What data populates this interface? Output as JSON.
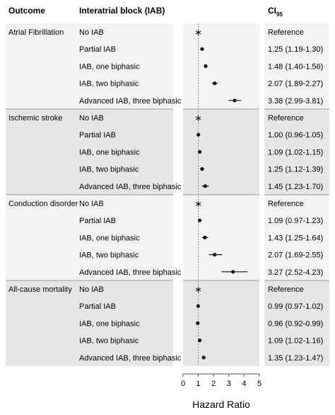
{
  "header": {
    "outcome": "Outcome",
    "block": "Interatrial block (IAB)",
    "ci_main": "CI",
    "ci_sub": "95"
  },
  "x_axis_label": "Hazard Ratio",
  "chart_data": {
    "type": "scatter",
    "subtype": "forest-plot",
    "xlabel": "Hazard Ratio",
    "xlim": [
      0,
      5
    ],
    "xticks": [
      0,
      1,
      2,
      3,
      4,
      5
    ],
    "reference_line_x": 1,
    "groups": [
      {
        "outcome": "Atrial Fibrillation",
        "rows": [
          {
            "label": "No IAB",
            "hr": 1,
            "lo": null,
            "hi": null,
            "text": "Reference",
            "reference": true
          },
          {
            "label": "Partial IAB",
            "hr": 1.25,
            "lo": 1.19,
            "hi": 1.3,
            "text": "1.25 (1.19-1.30)"
          },
          {
            "label": "IAB, one biphasic",
            "hr": 1.48,
            "lo": 1.4,
            "hi": 1.56,
            "text": "1.48 (1.40-1.56)"
          },
          {
            "label": "IAB, two biphasic",
            "hr": 2.07,
            "lo": 1.89,
            "hi": 2.27,
            "text": "2.07 (1.89-2.27)"
          },
          {
            "label": "Advanced IAB, three biphasic",
            "hr": 3.38,
            "lo": 2.99,
            "hi": 3.81,
            "text": "3.38 (2.99-3.81)"
          }
        ]
      },
      {
        "outcome": "Ischemic stroke",
        "rows": [
          {
            "label": "No IAB",
            "hr": 1,
            "lo": null,
            "hi": null,
            "text": "Reference",
            "reference": true
          },
          {
            "label": "Partial IAB",
            "hr": 1.0,
            "lo": 0.96,
            "hi": 1.05,
            "text": "1.00 (0.96-1.05)"
          },
          {
            "label": "IAB, one biphasic",
            "hr": 1.09,
            "lo": 1.02,
            "hi": 1.15,
            "text": "1.09 (1.02-1.15)"
          },
          {
            "label": "IAB, two biphasic",
            "hr": 1.25,
            "lo": 1.12,
            "hi": 1.39,
            "text": "1.25 (1.12-1.39)"
          },
          {
            "label": "Advanced IAB, three biphasic",
            "hr": 1.45,
            "lo": 1.23,
            "hi": 1.7,
            "text": "1.45 (1.23-1.70)"
          }
        ]
      },
      {
        "outcome": "Conduction disorder",
        "rows": [
          {
            "label": "No IAB",
            "hr": 1,
            "lo": null,
            "hi": null,
            "text": "Reference",
            "reference": true
          },
          {
            "label": "Partial IAB",
            "hr": 1.09,
            "lo": 0.97,
            "hi": 1.23,
            "text": "1.09 (0.97-1.23)"
          },
          {
            "label": "IAB, one biphasic",
            "hr": 1.43,
            "lo": 1.25,
            "hi": 1.64,
            "text": "1.43 (1.25-1.64)"
          },
          {
            "label": "IAB, two biphasic",
            "hr": 2.07,
            "lo": 1.69,
            "hi": 2.55,
            "text": "2.07 (1.69-2.55)"
          },
          {
            "label": "Advanced IAB, three biphasic",
            "hr": 3.27,
            "lo": 2.52,
            "hi": 4.23,
            "text": "3.27 (2.52-4.23)"
          }
        ]
      },
      {
        "outcome": "All-cause mortality",
        "rows": [
          {
            "label": "No IAB",
            "hr": 1,
            "lo": null,
            "hi": null,
            "text": "Reference",
            "reference": true
          },
          {
            "label": "Partial IAB",
            "hr": 0.99,
            "lo": 0.97,
            "hi": 1.02,
            "text": "0.99 (0.97-1.02)"
          },
          {
            "label": "IAB, one biphasic",
            "hr": 0.96,
            "lo": 0.92,
            "hi": 0.99,
            "text": "0.96 (0.92-0.99)"
          },
          {
            "label": "IAB, two biphasic",
            "hr": 1.09,
            "lo": 1.02,
            "hi": 1.16,
            "text": "1.09 (1.02-1.16)"
          },
          {
            "label": "Advanced IAB, three biphasic",
            "hr": 1.35,
            "lo": 1.23,
            "hi": 1.47,
            "text": "1.35 (1.23-1.47)"
          }
        ]
      }
    ]
  },
  "colors": {
    "band_light": "#f3f3f3",
    "band_dark": "#e6e6e6",
    "separator": "#9a9a9a",
    "point": "#111111",
    "reference_line": "#888888"
  }
}
